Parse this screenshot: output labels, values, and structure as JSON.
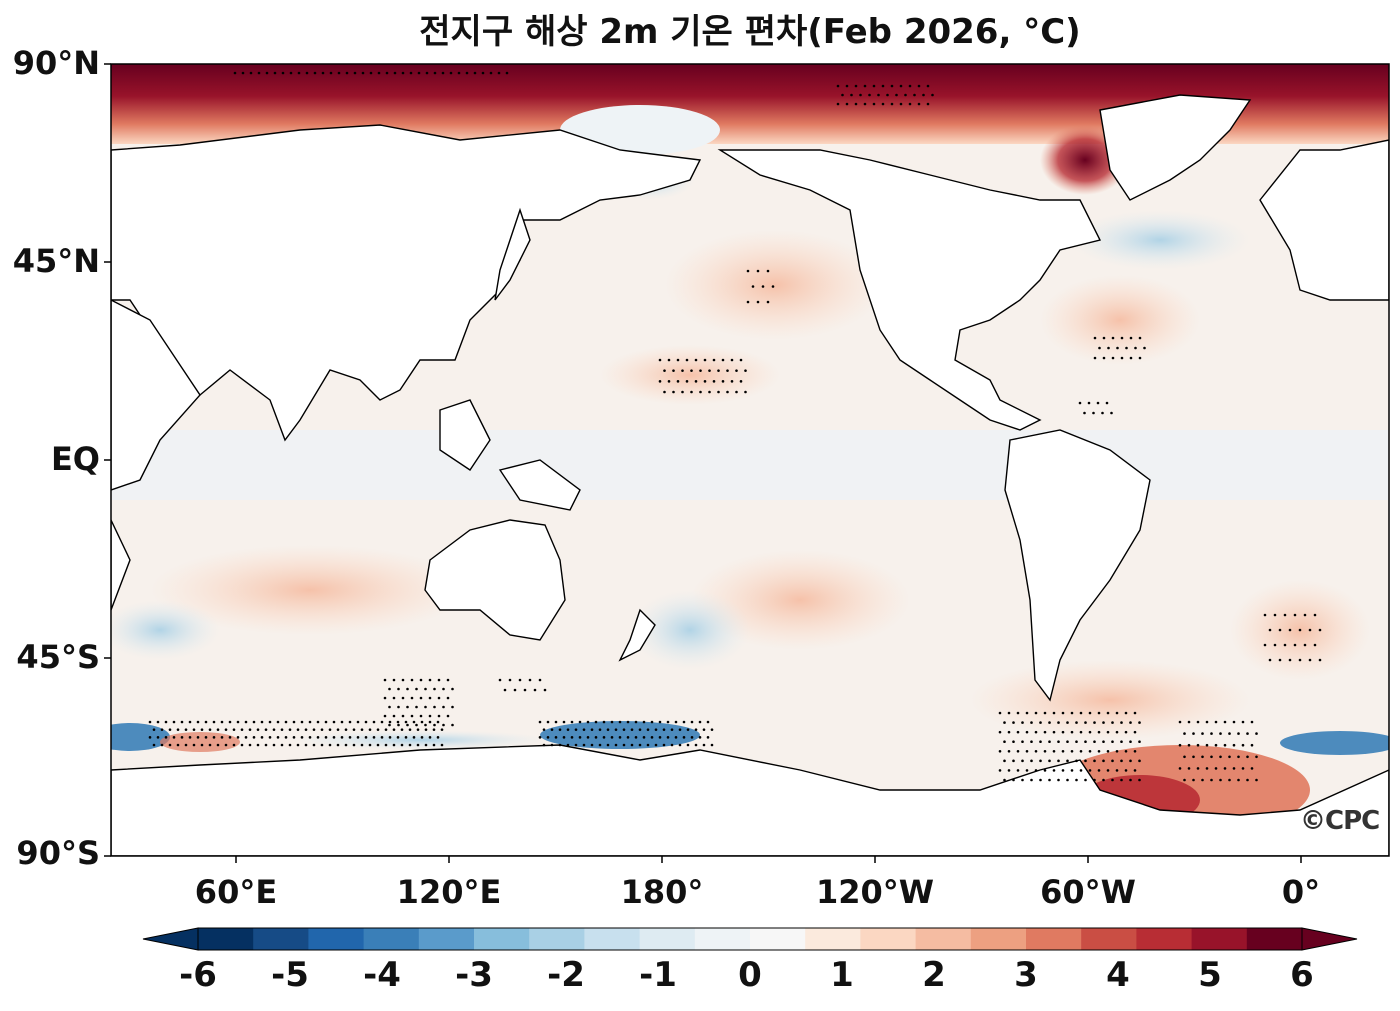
{
  "title": "전지구 해상 2m 기온 편차(Feb 2026, °C)",
  "logo_text": "©CPC",
  "axes": {
    "y_ticks": [
      "90°N",
      "45°N",
      "EQ",
      "45°S",
      "90°S"
    ],
    "x_ticks": [
      "60°E",
      "120°E",
      "180°",
      "120°W",
      "60°W",
      "0°"
    ]
  },
  "colorbar": {
    "labels": [
      "-6",
      "-5",
      "-4",
      "-3",
      "-2",
      "-1",
      "0",
      "1",
      "2",
      "3",
      "4",
      "5",
      "6"
    ],
    "colors": [
      "#053061",
      "#164b86",
      "#2166ac",
      "#3a7fb8",
      "#5a9bcb",
      "#87bedc",
      "#a9d0e5",
      "#c8e0ee",
      "#deebf2",
      "#eef3f6",
      "#f7f7f7",
      "#fbeadd",
      "#fbd7c2",
      "#f5bca2",
      "#eda081",
      "#e07a61",
      "#ca4e44",
      "#b82d34",
      "#98132a",
      "#67001f"
    ]
  },
  "map": {
    "region": "Global",
    "projection": "PlateCarree, central longitude ~180",
    "variable": "sea surface 2m air temperature anomaly",
    "land_color": "#ffffff",
    "ocean_base_color": "#f7f2ee",
    "features": [
      "strong warm anomaly in Arctic Ocean and Baffin Bay",
      "warm anomalies in Weddell Sea and around Antarctic Peninsula",
      "cold anomalies along Southern Ocean near 60°S",
      "stippling marks significant anomalies"
    ]
  }
}
